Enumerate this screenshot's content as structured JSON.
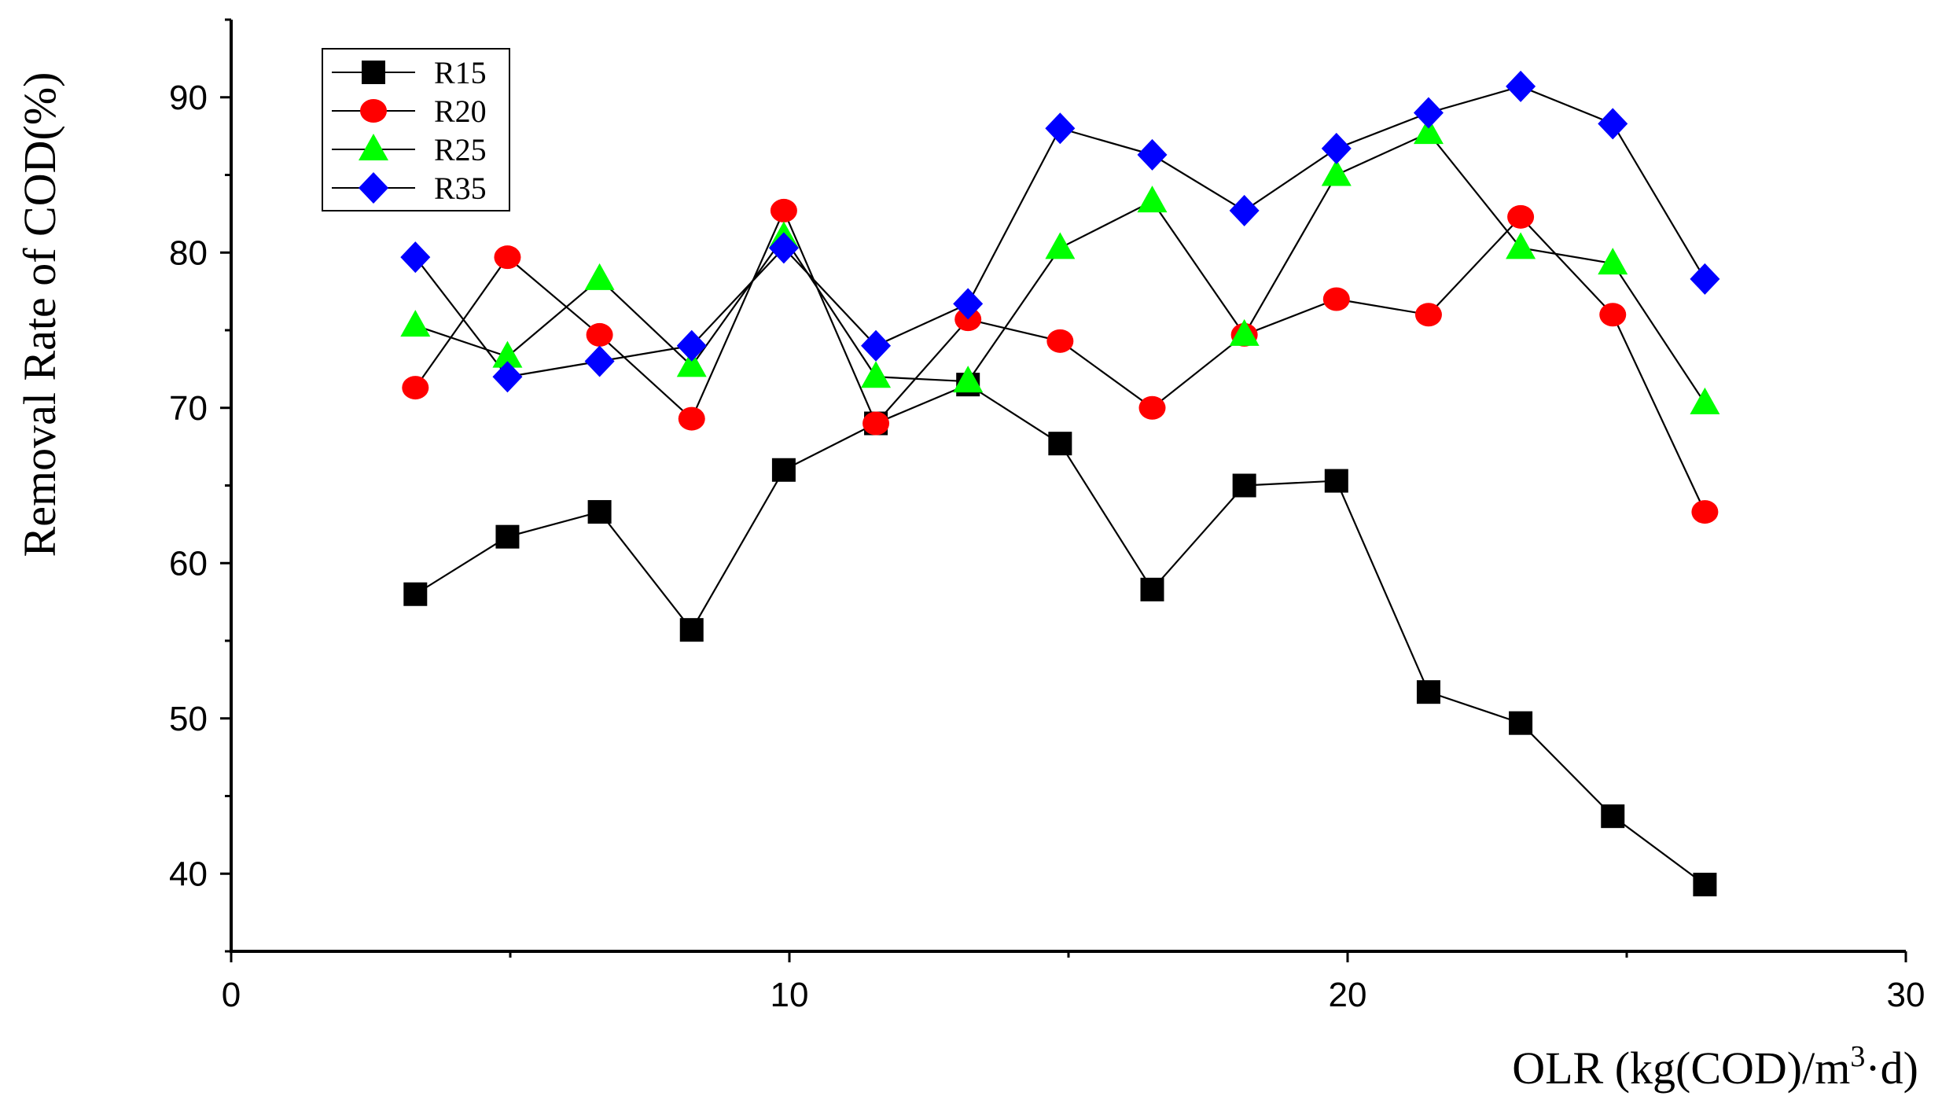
{
  "chart_data": {
    "type": "line",
    "title": "",
    "xlabel": "OLR (kg(COD)/m³·d)",
    "xlabel_parts": {
      "prefix": "OLR (kg(COD)/m",
      "superscript": "3",
      "suffix": "·d)"
    },
    "ylabel": "Removal Rate of COD(%)",
    "xlim": [
      0,
      30
    ],
    "ylim": [
      35,
      95
    ],
    "xticks": [
      0,
      10,
      20,
      30
    ],
    "yticks": [
      40,
      50,
      60,
      70,
      80,
      90
    ],
    "grid": false,
    "legend_position": "top-left",
    "x": [
      3.3,
      4.95,
      6.6,
      8.25,
      9.9,
      11.55,
      13.2,
      14.85,
      16.5,
      18.15,
      19.8,
      21.45,
      23.1,
      24.75,
      26.4
    ],
    "series": [
      {
        "name": "R15",
        "color": "#000000",
        "marker": "square",
        "values": [
          58.0,
          61.7,
          63.3,
          55.7,
          66.0,
          69.0,
          71.5,
          67.7,
          58.3,
          65.0,
          65.3,
          51.7,
          49.7,
          43.7,
          39.3
        ]
      },
      {
        "name": "R20",
        "color": "#ff0000",
        "marker": "circle",
        "values": [
          71.3,
          79.7,
          74.7,
          69.3,
          82.7,
          69.0,
          75.7,
          74.3,
          70.0,
          74.7,
          77.0,
          76.0,
          82.3,
          76.0,
          63.3
        ]
      },
      {
        "name": "R25",
        "color": "#00ff00",
        "marker": "triangle",
        "values": [
          75.3,
          73.3,
          78.3,
          72.7,
          81.0,
          72.0,
          71.7,
          80.3,
          83.3,
          74.7,
          85.0,
          87.7,
          80.3,
          79.3,
          70.3
        ]
      },
      {
        "name": "R35",
        "color": "#0000ff",
        "marker": "diamond",
        "values": [
          79.7,
          72.0,
          73.0,
          74.0,
          80.3,
          74.0,
          76.7,
          88.0,
          86.3,
          82.7,
          86.7,
          89.0,
          90.7,
          88.3,
          78.3
        ]
      }
    ]
  }
}
